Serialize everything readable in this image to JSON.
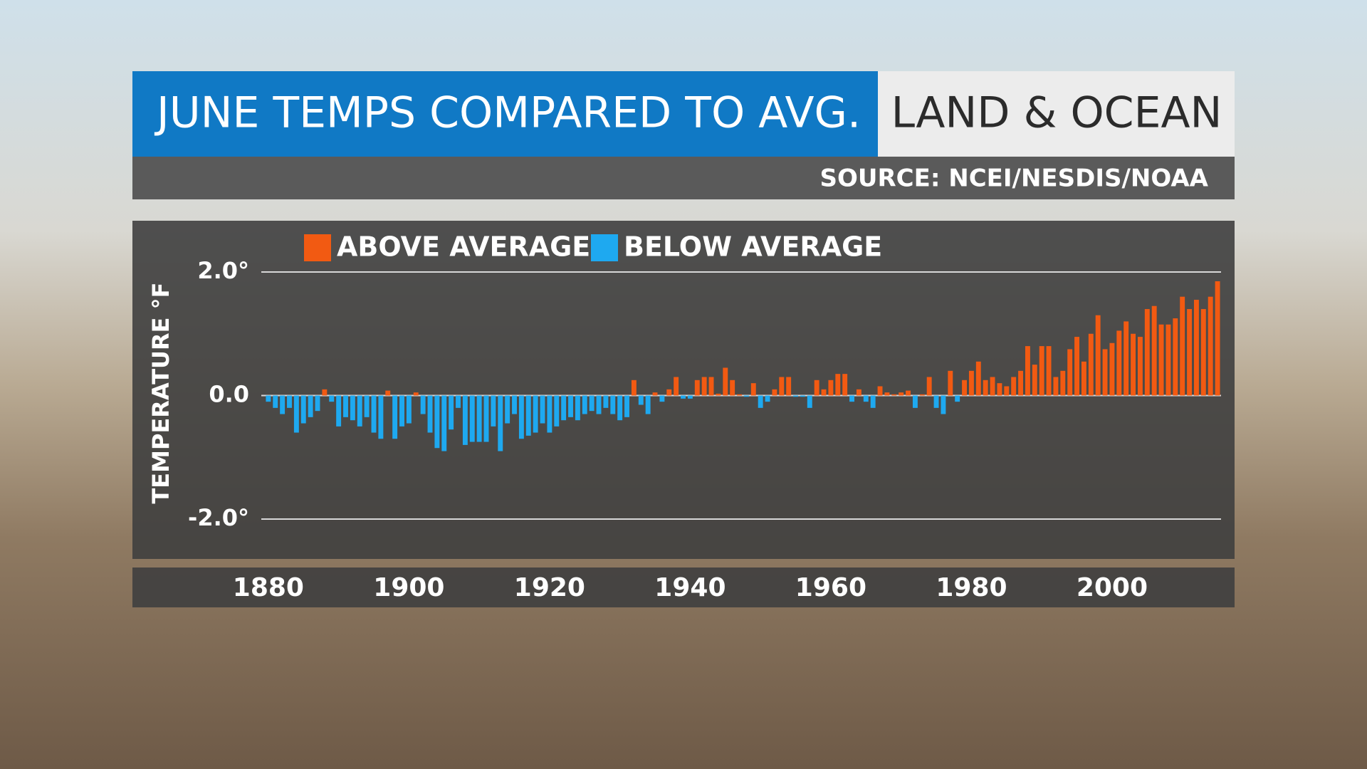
{
  "chart_data": {
    "type": "bar",
    "title": "JUNE TEMPS COMPARED TO AVG.",
    "subtitle": "LAND & OCEAN",
    "source": "SOURCE: NCEI/NESDIS/NOAA",
    "y_label": "TEMPERATURE °F",
    "x": [
      1880,
      1881,
      1882,
      1883,
      1884,
      1885,
      1886,
      1887,
      1888,
      1889,
      1890,
      1891,
      1892,
      1893,
      1894,
      1895,
      1896,
      1897,
      1898,
      1899,
      1900,
      1901,
      1902,
      1903,
      1904,
      1905,
      1906,
      1907,
      1908,
      1909,
      1910,
      1911,
      1912,
      1913,
      1914,
      1915,
      1916,
      1917,
      1918,
      1919,
      1920,
      1921,
      1922,
      1923,
      1924,
      1925,
      1926,
      1927,
      1928,
      1929,
      1930,
      1931,
      1932,
      1933,
      1934,
      1935,
      1936,
      1937,
      1938,
      1939,
      1940,
      1941,
      1942,
      1943,
      1944,
      1945,
      1946,
      1947,
      1948,
      1949,
      1950,
      1951,
      1952,
      1953,
      1954,
      1955,
      1956,
      1957,
      1958,
      1959,
      1960,
      1961,
      1962,
      1963,
      1964,
      1965,
      1966,
      1967,
      1968,
      1969,
      1970,
      1971,
      1972,
      1973,
      1974,
      1975,
      1976,
      1977,
      1978,
      1979,
      1980,
      1981,
      1982,
      1983,
      1984,
      1985,
      1986,
      1987,
      1988,
      1989,
      1990,
      1991,
      1992,
      1993,
      1994,
      1995,
      1996,
      1997,
      1998,
      1999,
      2000,
      2001,
      2002,
      2003,
      2004,
      2005,
      2006,
      2007,
      2008,
      2009,
      2010,
      2011,
      2012,
      2013,
      2014,
      2015
    ],
    "series": [
      {
        "name": "ABOVE AVERAGE",
        "color": "#f25a12",
        "values": [
          null,
          null,
          null,
          null,
          null,
          null,
          null,
          null,
          0.1,
          null,
          null,
          null,
          null,
          null,
          null,
          null,
          null,
          0.08,
          null,
          null,
          null,
          0.05,
          null,
          null,
          null,
          null,
          null,
          null,
          null,
          null,
          null,
          null,
          null,
          null,
          null,
          null,
          null,
          null,
          null,
          null,
          null,
          null,
          null,
          null,
          null,
          null,
          null,
          null,
          null,
          null,
          null,
          null,
          0.25,
          null,
          null,
          0.05,
          null,
          0.1,
          0.3,
          null,
          null,
          0.25,
          0.3,
          0.3,
          0.03,
          0.45,
          0.25,
          0.02,
          null,
          0.2,
          null,
          null,
          0.1,
          0.3,
          0.3,
          null,
          null,
          null,
          0.25,
          0.1,
          0.25,
          0.35,
          0.35,
          null,
          0.1,
          null,
          null,
          0.15,
          0.05,
          0.02,
          0.05,
          0.08,
          null,
          0.02,
          0.3,
          null,
          null,
          0.4,
          null,
          0.25,
          0.4,
          0.55,
          0.25,
          0.3,
          0.2,
          0.15,
          0.3,
          0.4,
          0.8,
          0.5,
          0.8,
          0.8,
          0.3,
          0.4,
          0.75,
          0.95,
          0.55,
          1.0,
          1.3,
          0.75,
          0.85,
          1.05,
          1.2,
          1.0,
          0.95,
          1.4,
          1.45,
          1.15,
          1.15,
          1.25,
          1.6,
          1.4,
          1.55,
          1.4,
          1.6,
          1.85
        ]
      },
      {
        "name": "BELOW AVERAGE",
        "color": "#1ea9f0",
        "values": [
          -0.1,
          -0.2,
          -0.3,
          -0.2,
          -0.6,
          -0.45,
          -0.35,
          -0.25,
          null,
          -0.1,
          -0.5,
          -0.35,
          -0.4,
          -0.5,
          -0.35,
          -0.6,
          -0.7,
          null,
          -0.7,
          -0.5,
          -0.45,
          null,
          -0.3,
          -0.6,
          -0.85,
          -0.9,
          -0.55,
          -0.2,
          -0.8,
          -0.75,
          -0.75,
          -0.75,
          -0.5,
          -0.9,
          -0.45,
          -0.3,
          -0.7,
          -0.65,
          -0.6,
          -0.45,
          -0.6,
          -0.5,
          -0.4,
          -0.35,
          -0.4,
          -0.3,
          -0.25,
          -0.3,
          -0.2,
          -0.3,
          -0.4,
          -0.35,
          null,
          -0.15,
          -0.3,
          null,
          -0.1,
          null,
          null,
          -0.05,
          -0.05,
          null,
          null,
          null,
          null,
          null,
          null,
          null,
          -0.02,
          null,
          -0.2,
          -0.1,
          null,
          null,
          null,
          -0.02,
          -0.02,
          -0.2,
          null,
          null,
          null,
          null,
          null,
          -0.1,
          null,
          -0.1,
          -0.2,
          null,
          null,
          null,
          null,
          null,
          -0.2,
          null,
          null,
          -0.2,
          -0.3,
          null,
          -0.1,
          null,
          null,
          null,
          null,
          null,
          null,
          null,
          null,
          null,
          null,
          null,
          null,
          null,
          null,
          null,
          null,
          null,
          null,
          null,
          null,
          null,
          null,
          null,
          null,
          null,
          null,
          null,
          null,
          null,
          null,
          null,
          null,
          null,
          null,
          null,
          null,
          null
        ]
      }
    ],
    "xlim": [
      1879,
      2015.5
    ],
    "xticks": [
      1880,
      1900,
      1920,
      1940,
      1960,
      1980,
      2000
    ],
    "ylim": [
      -2.0,
      2.0
    ],
    "yticks": [
      {
        "value": 2.0,
        "label": "2.0°"
      },
      {
        "value": 0.0,
        "label": "0.0"
      },
      {
        "value": -2.0,
        "label": "-2.0°"
      }
    ],
    "grid": true
  }
}
